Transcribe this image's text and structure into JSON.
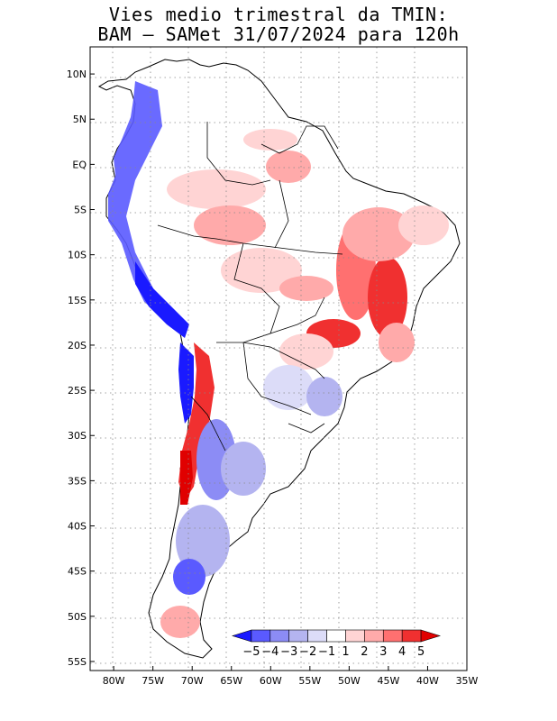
{
  "title": {
    "line1": "Vies medio trimestral da TMIN:",
    "line2": "BAM – SAMet 31/07/2024  para 120h"
  },
  "map": {
    "lon_range": [
      -83,
      -35
    ],
    "lat_range": [
      -56,
      13
    ],
    "grid": true,
    "lat_ticks": [
      {
        "value": 10,
        "label": "10N"
      },
      {
        "value": 5,
        "label": "5N"
      },
      {
        "value": 0,
        "label": "EQ"
      },
      {
        "value": -5,
        "label": "5S"
      },
      {
        "value": -10,
        "label": "10S"
      },
      {
        "value": -15,
        "label": "15S"
      },
      {
        "value": -20,
        "label": "20S"
      },
      {
        "value": -25,
        "label": "25S"
      },
      {
        "value": -30,
        "label": "30S"
      },
      {
        "value": -35,
        "label": "35S"
      },
      {
        "value": -40,
        "label": "40S"
      },
      {
        "value": -45,
        "label": "45S"
      },
      {
        "value": -50,
        "label": "50S"
      },
      {
        "value": -55,
        "label": "55S"
      }
    ],
    "lon_ticks": [
      {
        "value": -80,
        "label": "80W"
      },
      {
        "value": -75,
        "label": "75W"
      },
      {
        "value": -70,
        "label": "70W"
      },
      {
        "value": -65,
        "label": "65W"
      },
      {
        "value": -60,
        "label": "60W"
      },
      {
        "value": -55,
        "label": "55W"
      },
      {
        "value": -50,
        "label": "50W"
      },
      {
        "value": -45,
        "label": "45W"
      },
      {
        "value": -40,
        "label": "40W"
      },
      {
        "value": -35,
        "label": "35W"
      }
    ]
  },
  "colorbar": {
    "labels": [
      "−5",
      "−4",
      "−3",
      "−2",
      "−1",
      "1",
      "2",
      "3",
      "4",
      "5"
    ],
    "colors": [
      "#1a1aff",
      "#5a5aff",
      "#8c8cf5",
      "#b4b4f0",
      "#dcdcf8",
      "#ffffff",
      "#ffd4d4",
      "#ffaaaa",
      "#ff7070",
      "#f03030",
      "#e00000"
    ]
  }
}
